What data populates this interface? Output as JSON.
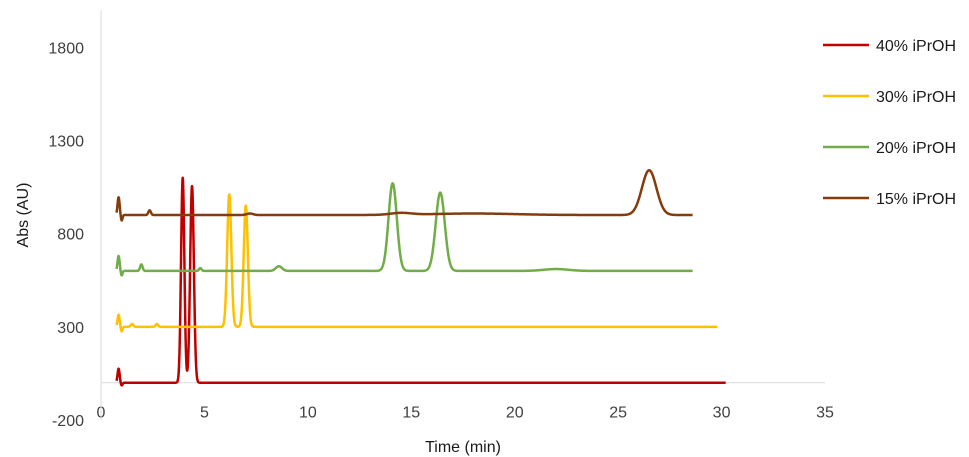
{
  "chart_data": {
    "type": "line",
    "title": "",
    "xlabel": "Time (min)",
    "ylabel": "Abs (AU)",
    "xlim": [
      0,
      35
    ],
    "ylim": [
      -200,
      2000
    ],
    "x_ticks": [
      0,
      5,
      10,
      15,
      20,
      25,
      30,
      35
    ],
    "y_ticks": [
      -200,
      300,
      800,
      1300,
      1800
    ],
    "grid": false,
    "legend_position": "right",
    "series": [
      {
        "name": "40% iPrOH",
        "color": "#C00000",
        "baseline": 0,
        "x_end": 30.2,
        "peaks": [
          {
            "x": 0.85,
            "height": 75,
            "width": 0.05
          },
          {
            "x": 1.0,
            "height": -15,
            "width": 0.04
          },
          {
            "x": 3.95,
            "height": 1100,
            "width": 0.08
          },
          {
            "x": 4.4,
            "height": 1055,
            "width": 0.09
          }
        ]
      },
      {
        "name": "30% iPrOH",
        "color": "#FFC000",
        "baseline": 300,
        "x_end": 29.8,
        "peaks": [
          {
            "x": 0.85,
            "height": 65,
            "width": 0.05
          },
          {
            "x": 1.0,
            "height": -25,
            "width": 0.04
          },
          {
            "x": 1.5,
            "height": 15,
            "width": 0.06
          },
          {
            "x": 2.7,
            "height": 15,
            "width": 0.06
          },
          {
            "x": 6.2,
            "height": 710,
            "width": 0.1
          },
          {
            "x": 7.0,
            "height": 650,
            "width": 0.1
          }
        ]
      },
      {
        "name": "20% iPrOH",
        "color": "#70AD47",
        "baseline": 600,
        "x_end": 28.6,
        "peaks": [
          {
            "x": 0.85,
            "height": 80,
            "width": 0.05
          },
          {
            "x": 1.0,
            "height": -25,
            "width": 0.04
          },
          {
            "x": 1.95,
            "height": 35,
            "width": 0.06
          },
          {
            "x": 4.8,
            "height": 15,
            "width": 0.06
          },
          {
            "x": 8.6,
            "height": 25,
            "width": 0.15
          },
          {
            "x": 14.1,
            "height": 470,
            "width": 0.2
          },
          {
            "x": 16.4,
            "height": 420,
            "width": 0.22
          },
          {
            "x": 22.0,
            "height": 10,
            "width": 0.6
          }
        ]
      },
      {
        "name": "15% iPrOH",
        "color": "#843C0C",
        "baseline": 900,
        "x_end": 28.6,
        "peaks": [
          {
            "x": 0.85,
            "height": 95,
            "width": 0.05
          },
          {
            "x": 1.0,
            "height": -30,
            "width": 0.04
          },
          {
            "x": 2.35,
            "height": 25,
            "width": 0.06
          },
          {
            "x": 7.2,
            "height": 8,
            "width": 0.15
          },
          {
            "x": 14.5,
            "height": 10,
            "width": 0.5
          },
          {
            "x": 18.0,
            "height": 8,
            "width": 2.0
          },
          {
            "x": 26.5,
            "height": 240,
            "width": 0.35
          }
        ]
      }
    ]
  }
}
